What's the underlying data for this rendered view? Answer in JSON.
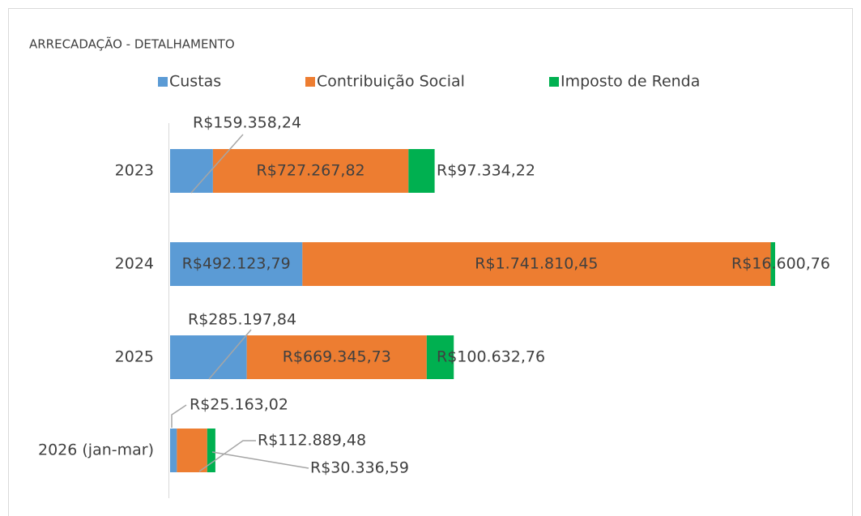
{
  "chart_data": {
    "type": "stacked-bar-horizontal",
    "title": "ARRECADAÇÃO - DETALHAMENTO",
    "categories": [
      "2023",
      "2024",
      "2025",
      "2026 (jan-mar)"
    ],
    "series": [
      {
        "name": "Custas",
        "color": "#5b9bd5",
        "values": [
          159358.24,
          492123.79,
          285197.84,
          25163.02
        ],
        "value_labels": [
          "R$159.358,24",
          "R$492.123,79",
          "R$285.197,84",
          "R$25.163,02"
        ]
      },
      {
        "name": "Contribuição Social",
        "color": "#ed7d31",
        "values": [
          727267.82,
          1741810.45,
          669345.73,
          112889.48
        ],
        "value_labels": [
          "R$727.267,82",
          "R$1.741.810,45",
          "R$669.345,73",
          "R$112.889,48"
        ]
      },
      {
        "name": "Imposto de Renda",
        "color": "#00b050",
        "values": [
          97334.22,
          16600.76,
          100632.76,
          30336.59
        ],
        "value_labels": [
          "R$97.334,22",
          "R$16.600,76",
          "R$100.632,76",
          "R$30.336,59"
        ]
      }
    ],
    "legend": "top"
  }
}
